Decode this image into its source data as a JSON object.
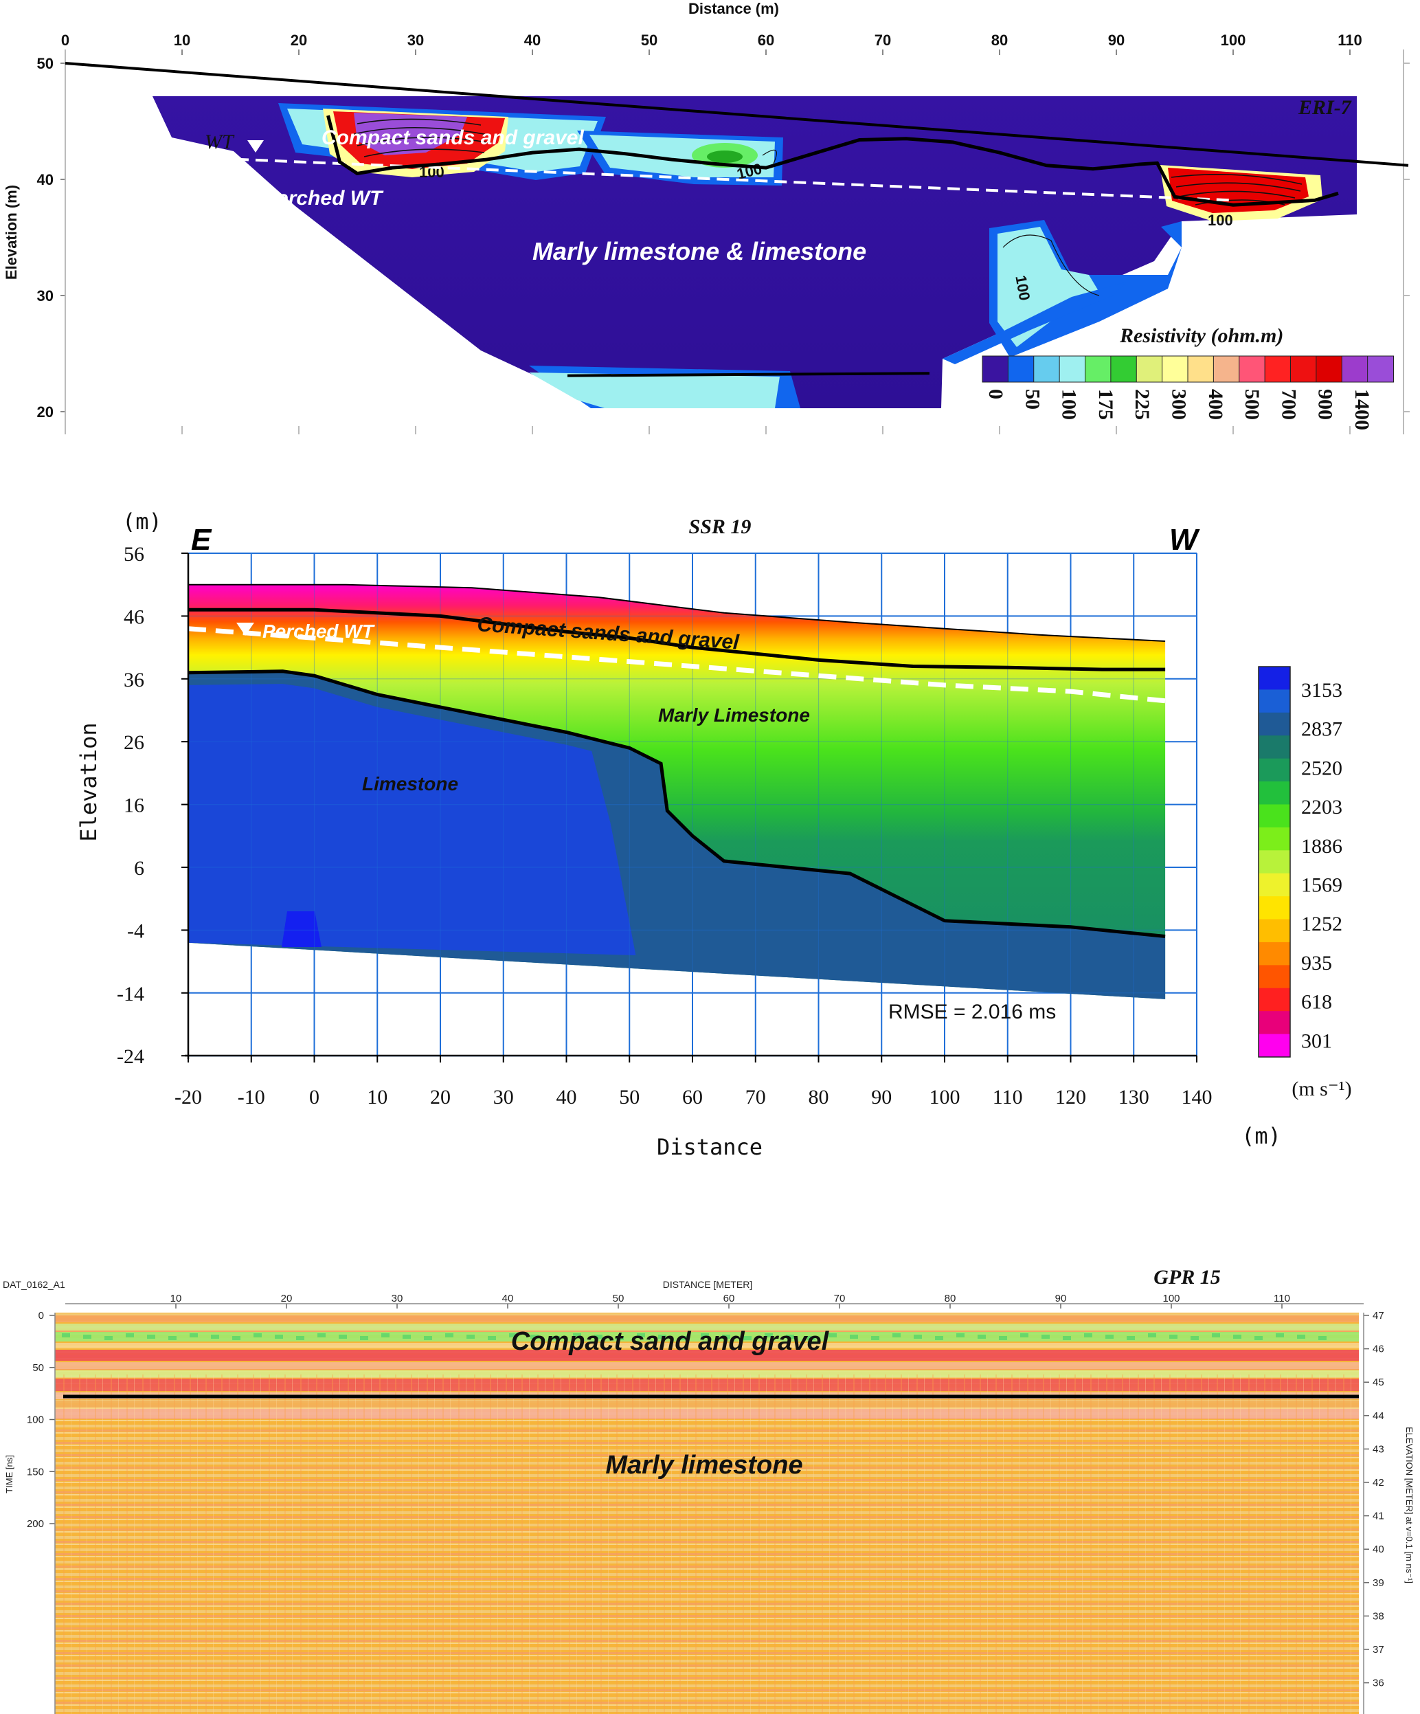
{
  "chart_data": [
    {
      "type": "heatmap",
      "title": "ERI-7",
      "xlabel": "Distance (m)",
      "ylabel": "Elevation (m)",
      "xlim": [
        0,
        115
      ],
      "ylim": [
        20,
        50
      ],
      "x_ticks": [
        "0",
        "10",
        "20",
        "30",
        "40",
        "50",
        "60",
        "70",
        "80",
        "90",
        "100",
        "110"
      ],
      "y_ticks": [
        "50",
        "40",
        "30",
        "20"
      ],
      "colorbar": {
        "title": "Resistivity (ohm.m)",
        "tick_labels": [
          "0",
          "50",
          "100",
          "175",
          "225",
          "300",
          "400",
          "500",
          "700",
          "900",
          "1400"
        ],
        "colors": [
          "#3a14a0",
          "#1166ee",
          "#66ccee",
          "#9ff0f0",
          "#66ee66",
          "#33cc33",
          "#e0f07a",
          "#ffff99",
          "#ffe08a",
          "#f5b48c",
          "#ff5577",
          "#ff2222",
          "#ee1111",
          "#dd0000",
          "#9c3ccc",
          "#9a4dd8"
        ]
      },
      "annotations": [
        "Compact sands and gravel",
        "WT",
        "Perched WT",
        "Marly limestone & limestone"
      ],
      "contour_labels": [
        "100",
        "100",
        "100",
        "100"
      ],
      "ground_surface": {
        "x": [
          0,
          115
        ],
        "y": [
          50,
          41.2
        ]
      },
      "water_table": {
        "x": [
          13,
          100
        ],
        "y": [
          41.8,
          38.2
        ]
      },
      "interface_upper": {
        "x": [
          22.5,
          23.5,
          25,
          28,
          32,
          36,
          40,
          44,
          48,
          52,
          56,
          60,
          64,
          68,
          72,
          76,
          80,
          84,
          88,
          92,
          93.5,
          95,
          100,
          107,
          109
        ],
        "y": [
          45.5,
          41.5,
          40.5,
          41,
          41.3,
          41.7,
          42.3,
          42.6,
          42.2,
          41.7,
          41.3,
          41,
          42.2,
          43.4,
          43.5,
          43.2,
          42.3,
          41.2,
          40.9,
          41.3,
          41.4,
          38.5,
          37.8,
          38.2,
          38.8
        ]
      },
      "interface_lower": {
        "x": [
          43,
          74
        ],
        "y": [
          23.1,
          23.3
        ]
      }
    },
    {
      "type": "heatmap",
      "title": "SSR 19",
      "xlabel": "Distance",
      "ylabel": "Elevation",
      "xunit": "(m)",
      "yunit": "(m)",
      "xlim": [
        -20,
        140
      ],
      "ylim": [
        -24,
        56
      ],
      "x_ticks": [
        "-20",
        "-10",
        "0",
        "10",
        "20",
        "30",
        "40",
        "50",
        "60",
        "70",
        "80",
        "90",
        "100",
        "110",
        "120",
        "130",
        "140"
      ],
      "y_ticks": [
        "56",
        "46",
        "36",
        "26",
        "16",
        "6",
        "-4",
        "-14",
        "-24"
      ],
      "orientation": {
        "left": "E",
        "right": "W"
      },
      "colorbar": {
        "unit": "(m s⁻¹)",
        "tick_labels": [
          "3153",
          "2837",
          "2520",
          "2203",
          "1886",
          "1569",
          "1252",
          "935",
          "618",
          "301"
        ],
        "colors": [
          "#1420e6",
          "#1a5fd6",
          "#1f5a96",
          "#1a7a6a",
          "#1b9a5a",
          "#22c03c",
          "#4ae21c",
          "#7cee1a",
          "#b8f23a",
          "#eef22c",
          "#ffe400",
          "#ffbe00",
          "#ff8a00",
          "#ff5500",
          "#ff2020",
          "#e8007a",
          "#ff00ee"
        ]
      },
      "annotations": [
        "Compact sands and gravel",
        "Perched WT",
        "Marly Limestone",
        "Limestone",
        "RMSE = 2.016 ms"
      ],
      "surface": {
        "x": [
          -20,
          5,
          25,
          45,
          65,
          85,
          100,
          115,
          135
        ],
        "y": [
          51,
          51,
          50.5,
          49,
          46.5,
          45,
          44,
          43,
          42
        ]
      },
      "bottom": {
        "x": [
          -20,
          135
        ],
        "y": [
          -6,
          -15
        ]
      },
      "interface_upper": {
        "x": [
          -20,
          0,
          20,
          40,
          50,
          60,
          80,
          95,
          110,
          125,
          135
        ],
        "y": [
          47,
          47,
          46,
          43.5,
          42.5,
          41,
          39,
          38,
          37.8,
          37.5,
          37.5
        ]
      },
      "water_table": {
        "x": [
          -20,
          0,
          20,
          40,
          60,
          80,
          100,
          120,
          135
        ],
        "y": [
          44,
          42.5,
          41,
          39.5,
          38,
          36.5,
          35,
          34,
          32.5
        ]
      },
      "interface_lower": {
        "x": [
          -20,
          -5,
          0,
          10,
          20,
          30,
          40,
          50,
          55,
          56,
          60,
          65,
          75,
          85,
          95,
          100,
          110,
          120,
          135
        ],
        "y": [
          37,
          37.2,
          36.5,
          33.5,
          31.5,
          29.5,
          27.5,
          25,
          22.5,
          15,
          11,
          7,
          6,
          5,
          0,
          -2.5,
          -3,
          -3.5,
          -5
        ]
      }
    },
    {
      "type": "heatmap",
      "title": "GPR 15",
      "file_label": "DAT_0162_A1",
      "xlabel": "DISTANCE [METER]",
      "ylabel_left": "TIME [ns]",
      "ylabel_right": "ELEVATION [METER] at v=0.1 [m ns⁻¹]",
      "xlim": [
        0,
        117
      ],
      "time_ticks": [
        "0",
        "50",
        "100",
        "150",
        "200"
      ],
      "x_ticks": [
        "10",
        "20",
        "30",
        "40",
        "50",
        "60",
        "70",
        "80",
        "90",
        "100",
        "110"
      ],
      "elevation_ticks": [
        "47",
        "46",
        "45",
        "44",
        "43",
        "42",
        "41",
        "40",
        "39",
        "38",
        "37",
        "36"
      ],
      "annotations": [
        "Compact sand and gravel",
        "Marly limestone"
      ],
      "interface_time_ns": 82
    }
  ]
}
